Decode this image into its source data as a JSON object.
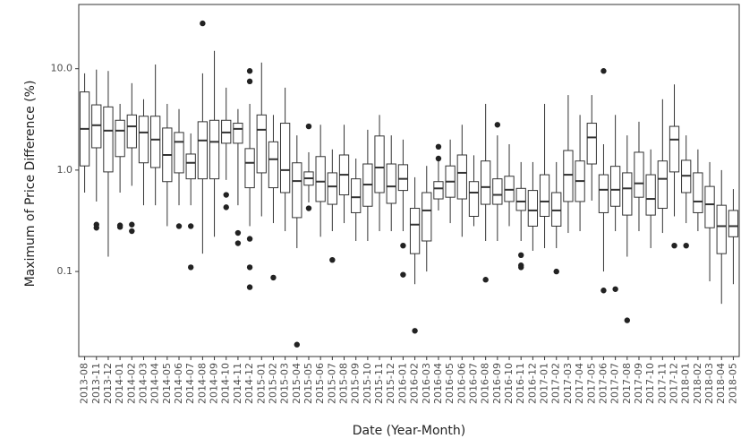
{
  "chart_data": {
    "type": "box",
    "x_label": "Date (Year-Month)",
    "y_label": "Maximum of Price Difference (%)",
    "log_y": true,
    "grid": true,
    "ylim": [
      0.0145,
      43
    ],
    "yticks": [
      {
        "value": 10,
        "label": "10.0"
      },
      {
        "value": 1,
        "label": "1.0"
      },
      0.1
    ],
    "categories": [
      "2013-08",
      "2013-11",
      "2013-12",
      "2014-01",
      "2014-02",
      "2014-03",
      "2014-04",
      "2014-05",
      "2014-06",
      "2014-07",
      "2014-08",
      "2014-09",
      "2014-10",
      "2014-11",
      "2014-12",
      "2015-01",
      "2015-02",
      "2015-03",
      "2015-04",
      "2015-05",
      "2015-06",
      "2015-07",
      "2015-08",
      "2015-09",
      "2015-10",
      "2015-11",
      "2015-12",
      "2016-01",
      "2016-02",
      "2016-03",
      "2016-04",
      "2016-05",
      "2016-06",
      "2016-07",
      "2016-08",
      "2016-09",
      "2016-10",
      "2016-11",
      "2016-12",
      "2017-01",
      "2017-02",
      "2017-03",
      "2017-04",
      "2017-05",
      "2017-06",
      "2017-07",
      "2017-08",
      "2017-09",
      "2017-10",
      "2017-11",
      "2017-12",
      "2018-01",
      "2018-02",
      "2018-03",
      "2018-04",
      "2018-05"
    ],
    "boxes": [
      {
        "low": 0.6,
        "q1": 1.1,
        "median": 2.55,
        "q3": 5.9,
        "high": 9
      },
      {
        "low": 0.49,
        "q1": 1.66,
        "median": 2.77,
        "q3": 4.4,
        "high": 9.8,
        "outliers": [
          0.29,
          0.27
        ]
      },
      {
        "low": 0.14,
        "q1": 0.96,
        "median": 2.45,
        "q3": 4.2,
        "high": 9.5
      },
      {
        "low": 0.6,
        "q1": 1.36,
        "median": 2.45,
        "q3": 3.1,
        "high": 4.5,
        "outliers": [
          0.285,
          0.275
        ]
      },
      {
        "low": 0.7,
        "q1": 1.66,
        "median": 2.7,
        "q3": 3.5,
        "high": 7.2,
        "outliers": [
          0.29,
          0.25
        ]
      },
      {
        "low": 0.45,
        "q1": 1.18,
        "median": 2.35,
        "q3": 3.4,
        "high": 5
      },
      {
        "low": 0.45,
        "q1": 1.06,
        "median": 2.0,
        "q3": 3.4,
        "high": 11
      },
      {
        "low": 0.28,
        "q1": 0.77,
        "median": 1.41,
        "q3": 2.6,
        "high": 4.5
      },
      {
        "low": 0.45,
        "q1": 0.94,
        "median": 1.9,
        "q3": 2.35,
        "high": 4,
        "outliers": [
          0.28
        ]
      },
      {
        "low": 0.45,
        "q1": 0.82,
        "median": 1.18,
        "q3": 1.44,
        "high": 2.3,
        "outliers": [
          0.28,
          0.11
        ]
      },
      {
        "low": 0.15,
        "q1": 0.82,
        "median": 1.96,
        "q3": 3.0,
        "high": 9,
        "outliers": [
          28
        ]
      },
      {
        "low": 0.22,
        "q1": 0.82,
        "median": 1.9,
        "q3": 3.1,
        "high": 15
      },
      {
        "low": 0.8,
        "q1": 1.84,
        "median": 2.35,
        "q3": 3.1,
        "high": 6.5,
        "outliers": [
          0.57,
          0.43
        ]
      },
      {
        "low": 0.45,
        "q1": 1.84,
        "median": 2.55,
        "q3": 2.9,
        "high": 4,
        "outliers": [
          0.24,
          0.19
        ]
      },
      {
        "low": 0.28,
        "q1": 0.67,
        "median": 1.18,
        "q3": 1.63,
        "high": 4.5,
        "outliers": [
          9.5,
          7.5,
          0.21,
          0.11,
          0.07
        ]
      },
      {
        "low": 0.35,
        "q1": 0.94,
        "median": 2.5,
        "q3": 3.5,
        "high": 11.5
      },
      {
        "low": 0.3,
        "q1": 0.67,
        "median": 1.28,
        "q3": 1.9,
        "high": 3.5,
        "outliers": [
          0.087
        ]
      },
      {
        "low": 0.25,
        "q1": 0.6,
        "median": 1.0,
        "q3": 2.9,
        "high": 6.5
      },
      {
        "low": 0.17,
        "q1": 0.34,
        "median": 0.78,
        "q3": 1.18,
        "high": 2.2,
        "outliers": [
          0.019
        ]
      },
      {
        "low": 0.48,
        "q1": 0.71,
        "median": 0.83,
        "q3": 0.96,
        "high": 1.5,
        "outliers": [
          2.7,
          0.42
        ]
      },
      {
        "low": 0.22,
        "q1": 0.49,
        "median": 0.77,
        "q3": 1.36,
        "high": 2.8
      },
      {
        "low": 0.25,
        "q1": 0.46,
        "median": 0.69,
        "q3": 0.94,
        "high": 1.6,
        "outliers": [
          0.13
        ]
      },
      {
        "low": 0.3,
        "q1": 0.57,
        "median": 0.9,
        "q3": 1.41,
        "high": 2.8
      },
      {
        "low": 0.2,
        "q1": 0.38,
        "median": 0.54,
        "q3": 0.82,
        "high": 1.3
      },
      {
        "low": 0.2,
        "q1": 0.44,
        "median": 0.72,
        "q3": 1.15,
        "high": 2.5
      },
      {
        "low": 0.25,
        "q1": 0.6,
        "median": 1.06,
        "q3": 2.17,
        "high": 3.5
      },
      {
        "low": 0.25,
        "q1": 0.47,
        "median": 0.69,
        "q3": 1.15,
        "high": 2.2
      },
      {
        "low": 0.25,
        "q1": 0.63,
        "median": 0.82,
        "q3": 1.13,
        "high": 2.0,
        "outliers": [
          0.18,
          0.093
        ]
      },
      {
        "low": 0.075,
        "q1": 0.15,
        "median": 0.29,
        "q3": 0.42,
        "high": 0.85,
        "outliers": [
          0.026
        ]
      },
      {
        "low": 0.1,
        "q1": 0.2,
        "median": 0.4,
        "q3": 0.6,
        "high": 1.1
      },
      {
        "low": 0.4,
        "q1": 0.52,
        "median": 0.66,
        "q3": 0.77,
        "high": 1.3,
        "outliers": [
          1.7,
          1.3
        ]
      },
      {
        "low": 0.3,
        "q1": 0.54,
        "median": 0.77,
        "q3": 1.1,
        "high": 2.0
      },
      {
        "low": 0.22,
        "q1": 0.52,
        "median": 0.94,
        "q3": 1.41,
        "high": 2.8
      },
      {
        "low": 0.28,
        "q1": 0.35,
        "median": 0.6,
        "q3": 0.77,
        "high": 1.4
      },
      {
        "low": 0.2,
        "q1": 0.46,
        "median": 0.68,
        "q3": 1.23,
        "high": 4.5,
        "outliers": [
          0.083
        ]
      },
      {
        "low": 0.2,
        "q1": 0.46,
        "median": 0.57,
        "q3": 0.82,
        "high": 2.2,
        "outliers": [
          2.8
        ]
      },
      {
        "low": 0.28,
        "q1": 0.49,
        "median": 0.64,
        "q3": 0.87,
        "high": 1.8
      },
      {
        "low": 0.2,
        "q1": 0.4,
        "median": 0.49,
        "q3": 0.66,
        "high": 1.2,
        "outliers": [
          0.145,
          0.115,
          0.11
        ]
      },
      {
        "low": 0.16,
        "q1": 0.28,
        "median": 0.4,
        "q3": 0.63,
        "high": 1.2
      },
      {
        "low": 0.17,
        "q1": 0.35,
        "median": 0.49,
        "q3": 0.9,
        "high": 4.5
      },
      {
        "low": 0.17,
        "q1": 0.28,
        "median": 0.4,
        "q3": 0.6,
        "high": 1.2,
        "outliers": [
          0.1
        ]
      },
      {
        "low": 0.24,
        "q1": 0.49,
        "median": 0.9,
        "q3": 1.56,
        "high": 5.5
      },
      {
        "low": 0.25,
        "q1": 0.49,
        "median": 0.78,
        "q3": 1.23,
        "high": 3.5
      },
      {
        "low": 0.5,
        "q1": 1.15,
        "median": 2.1,
        "q3": 2.9,
        "high": 5.5
      },
      {
        "low": 0.1,
        "q1": 0.38,
        "median": 0.64,
        "q3": 0.9,
        "high": 1.8,
        "outliers": [
          9.5,
          0.065
        ]
      },
      {
        "low": 0.25,
        "q1": 0.44,
        "median": 0.64,
        "q3": 1.09,
        "high": 3.5,
        "outliers": [
          0.067
        ]
      },
      {
        "low": 0.14,
        "q1": 0.36,
        "median": 0.66,
        "q3": 0.94,
        "high": 2.2,
        "outliers": [
          0.033
        ]
      },
      {
        "low": 0.25,
        "q1": 0.54,
        "median": 0.74,
        "q3": 1.5,
        "high": 3.0
      },
      {
        "low": 0.17,
        "q1": 0.36,
        "median": 0.52,
        "q3": 0.9,
        "high": 1.6
      },
      {
        "low": 0.24,
        "q1": 0.42,
        "median": 0.82,
        "q3": 1.23,
        "high": 5
      },
      {
        "low": 0.35,
        "q1": 0.96,
        "median": 2.0,
        "q3": 2.7,
        "high": 7,
        "outliers": [
          0.18
        ]
      },
      {
        "low": 0.3,
        "q1": 0.6,
        "median": 0.88,
        "q3": 1.25,
        "high": 2.2,
        "outliers": [
          0.18
        ]
      },
      {
        "low": 0.25,
        "q1": 0.38,
        "median": 0.49,
        "q3": 0.94,
        "high": 1.6
      },
      {
        "low": 0.08,
        "q1": 0.27,
        "median": 0.46,
        "q3": 0.69,
        "high": 1.2
      },
      {
        "low": 0.048,
        "q1": 0.15,
        "median": 0.28,
        "q3": 0.45,
        "high": 1.0
      },
      {
        "low": 0.075,
        "q1": 0.22,
        "median": 0.28,
        "q3": 0.4,
        "high": 0.65
      }
    ]
  }
}
